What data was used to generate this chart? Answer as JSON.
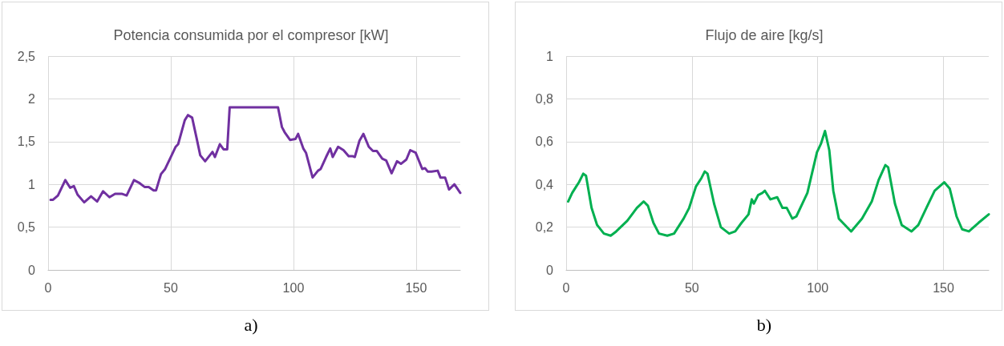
{
  "chart_data": [
    {
      "type": "line",
      "title": "Potencia consumida por el compresor [kW]",
      "annotations": [
        "a)"
      ],
      "grid": true,
      "marker": "none",
      "line_style": "solid",
      "xlim": [
        0,
        168
      ],
      "xticks": [
        0,
        50,
        100,
        150
      ],
      "ylim": [
        0,
        2.5
      ],
      "yticks": [
        0,
        {
          "value": 0.5,
          "label": "0,5"
        },
        1,
        {
          "value": 1.5,
          "label": "1,5"
        },
        2,
        {
          "value": 2.5,
          "label": "2,5"
        }
      ],
      "series": [
        {
          "color": "#7030a0",
          "x": [
            1,
            2,
            4,
            7,
            9,
            10.5,
            12,
            14.7,
            17.5,
            20,
            22.4,
            25,
            27.3,
            30,
            32,
            35,
            37,
            39.3,
            41,
            43,
            44,
            46,
            47.7,
            50,
            52,
            53,
            55.7,
            57,
            58.7,
            60.6,
            62,
            64,
            67,
            68,
            70,
            71.5,
            73,
            74,
            93.7,
            95.3,
            96.4,
            98.6,
            100.8,
            101.9,
            104,
            105.1,
            107.8,
            110,
            111.1,
            113.3,
            115,
            116,
            118.2,
            120.4,
            122.5,
            124,
            125,
            126.9,
            128.5,
            130.7,
            132.4,
            134,
            136.2,
            137.8,
            140,
            142.2,
            143.8,
            146,
            147.6,
            149.8,
            152.5,
            153.6,
            154.7,
            156.3,
            158.8,
            159.9,
            161.8,
            163.4,
            165.6,
            168
          ],
          "values": [
            0.82,
            0.82,
            0.87,
            1.05,
            0.96,
            0.98,
            0.88,
            0.79,
            0.86,
            0.8,
            0.92,
            0.85,
            0.89,
            0.89,
            0.87,
            1.05,
            1.02,
            0.97,
            0.97,
            0.93,
            0.93,
            1.12,
            1.18,
            1.32,
            1.44,
            1.47,
            1.75,
            1.81,
            1.78,
            1.53,
            1.34,
            1.27,
            1.38,
            1.32,
            1.47,
            1.41,
            1.41,
            1.9,
            1.9,
            1.67,
            1.61,
            1.52,
            1.53,
            1.59,
            1.42,
            1.37,
            1.08,
            1.16,
            1.18,
            1.32,
            1.42,
            1.32,
            1.44,
            1.4,
            1.33,
            1.33,
            1.32,
            1.51,
            1.59,
            1.44,
            1.39,
            1.39,
            1.3,
            1.28,
            1.13,
            1.27,
            1.24,
            1.29,
            1.4,
            1.37,
            1.18,
            1.19,
            1.15,
            1.15,
            1.16,
            1.08,
            1.08,
            0.94,
            1.0,
            0.9
          ]
        }
      ]
    },
    {
      "type": "line",
      "title": "Flujo de aire [kg/s]",
      "annotations": [
        "b)"
      ],
      "grid": true,
      "marker": "none",
      "line_style": "solid",
      "xlim": [
        0,
        168
      ],
      "xticks": [
        0,
        50,
        100,
        150
      ],
      "ylim": [
        0,
        1
      ],
      "yticks": [
        0,
        {
          "value": 0.2,
          "label": "0,2"
        },
        {
          "value": 0.4,
          "label": "0,4"
        },
        {
          "value": 0.6,
          "label": "0,6"
        },
        {
          "value": 0.8,
          "label": "0,8"
        },
        1
      ],
      "series": [
        {
          "color": "#00b050",
          "x": [
            0.8,
            2.4,
            4,
            5.1,
            6.8,
            7.9,
            10.1,
            12.3,
            15,
            17.7,
            19.9,
            24.3,
            28.1,
            30.8,
            32.5,
            34.7,
            36.9,
            40.2,
            42.9,
            46.7,
            48.9,
            51.6,
            53.8,
            55.1,
            56.2,
            58.8,
            61.5,
            64.8,
            67.2,
            69.7,
            72.5,
            73.8,
            74.6,
            76.3,
            78,
            79,
            81.2,
            83.9,
            86,
            87.7,
            89.9,
            91.5,
            95.9,
            99.7,
            101.3,
            102.9,
            104.6,
            106.2,
            108.4,
            113.3,
            117.6,
            121.5,
            124.2,
            126.9,
            128,
            130.7,
            133.4,
            137.3,
            140,
            143.2,
            146.5,
            150.3,
            152.5,
            155.2,
            157.4,
            160.1,
            163.9,
            168
          ],
          "values": [
            0.32,
            0.36,
            0.39,
            0.41,
            0.45,
            0.44,
            0.29,
            0.21,
            0.17,
            0.16,
            0.18,
            0.23,
            0.29,
            0.32,
            0.3,
            0.22,
            0.17,
            0.16,
            0.17,
            0.24,
            0.29,
            0.39,
            0.43,
            0.46,
            0.45,
            0.31,
            0.2,
            0.17,
            0.18,
            0.22,
            0.26,
            0.33,
            0.31,
            0.35,
            0.36,
            0.37,
            0.33,
            0.34,
            0.29,
            0.29,
            0.24,
            0.25,
            0.36,
            0.55,
            0.59,
            0.65,
            0.56,
            0.37,
            0.24,
            0.18,
            0.24,
            0.32,
            0.42,
            0.49,
            0.48,
            0.31,
            0.21,
            0.18,
            0.21,
            0.29,
            0.37,
            0.41,
            0.38,
            0.25,
            0.19,
            0.18,
            0.22,
            0.26
          ]
        }
      ]
    }
  ]
}
